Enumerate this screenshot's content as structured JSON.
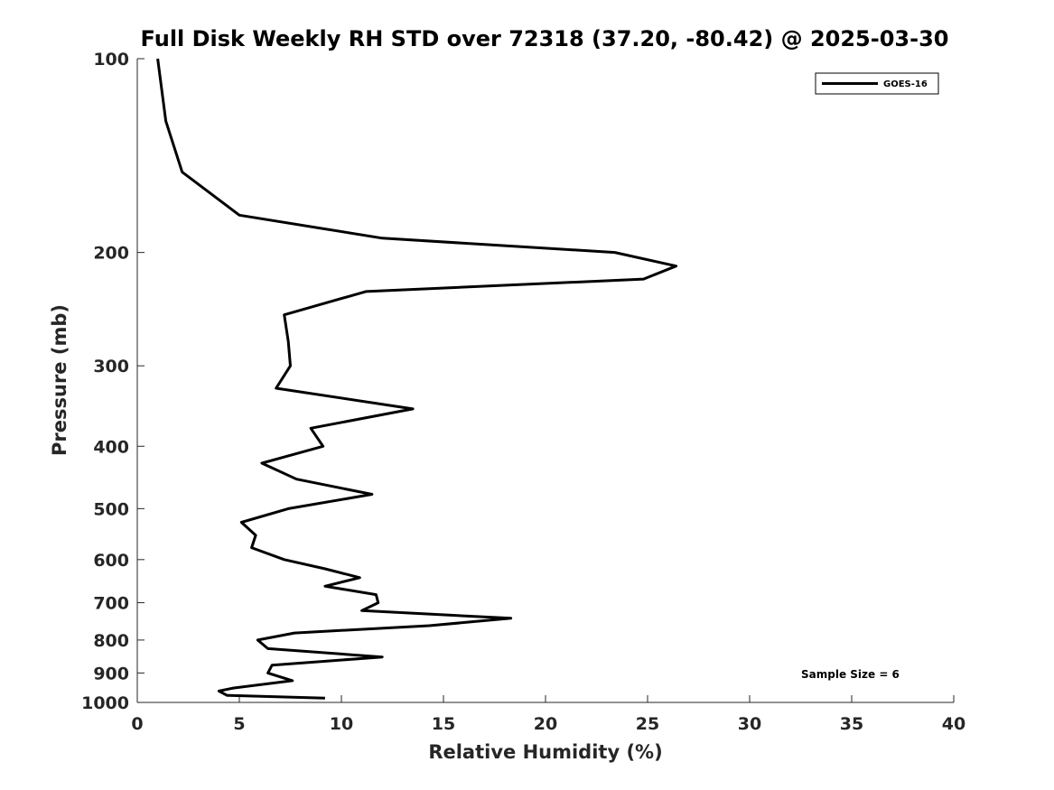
{
  "chart_data": {
    "type": "line",
    "title": "Full Disk Weekly RH STD over 72318 (37.20, -80.42) @ 2025-03-30",
    "xlabel": "Relative Humidity (%)",
    "ylabel": "Pressure (mb)",
    "xlim": [
      0,
      40
    ],
    "ylim": [
      100,
      1000
    ],
    "yscale": "log",
    "y_reversed": true,
    "x_ticks": [
      0,
      5,
      10,
      15,
      20,
      25,
      30,
      35,
      40
    ],
    "x_tick_labels": [
      "0",
      "5",
      "10",
      "15",
      "20",
      "25",
      "30",
      "35",
      "40"
    ],
    "y_ticks": [
      100,
      200,
      300,
      400,
      500,
      600,
      700,
      800,
      900,
      1000
    ],
    "y_tick_labels": [
      "100",
      "200",
      "300",
      "400",
      "500",
      "600",
      "700",
      "800",
      "900",
      "1000"
    ],
    "grid": false,
    "legend_position": "top-right",
    "annotation": "Sample Size = 6",
    "series": [
      {
        "name": "GOES-16",
        "color": "#000000",
        "points": [
          [
            1.0,
            100
          ],
          [
            1.4,
            125
          ],
          [
            2.2,
            150
          ],
          [
            5.0,
            175
          ],
          [
            12.0,
            190
          ],
          [
            23.4,
            200
          ],
          [
            26.4,
            210
          ],
          [
            24.8,
            220
          ],
          [
            11.2,
            230
          ],
          [
            7.2,
            250
          ],
          [
            7.4,
            275
          ],
          [
            7.5,
            300
          ],
          [
            6.8,
            325
          ],
          [
            13.5,
            350
          ],
          [
            8.5,
            375
          ],
          [
            9.1,
            400
          ],
          [
            6.1,
            425
          ],
          [
            7.8,
            450
          ],
          [
            11.5,
            475
          ],
          [
            7.4,
            500
          ],
          [
            5.1,
            525
          ],
          [
            5.8,
            550
          ],
          [
            5.6,
            575
          ],
          [
            7.2,
            600
          ],
          [
            9.2,
            620
          ],
          [
            10.9,
            640
          ],
          [
            9.2,
            660
          ],
          [
            11.7,
            680
          ],
          [
            11.8,
            700
          ],
          [
            11.0,
            720
          ],
          [
            18.3,
            740
          ],
          [
            14.3,
            760
          ],
          [
            7.7,
            780
          ],
          [
            5.9,
            800
          ],
          [
            6.4,
            825
          ],
          [
            12.0,
            850
          ],
          [
            6.6,
            875
          ],
          [
            6.4,
            900
          ],
          [
            7.6,
            925
          ],
          [
            4.7,
            950
          ],
          [
            4.0,
            960
          ],
          [
            4.4,
            975
          ],
          [
            9.2,
            985
          ]
        ]
      }
    ]
  }
}
